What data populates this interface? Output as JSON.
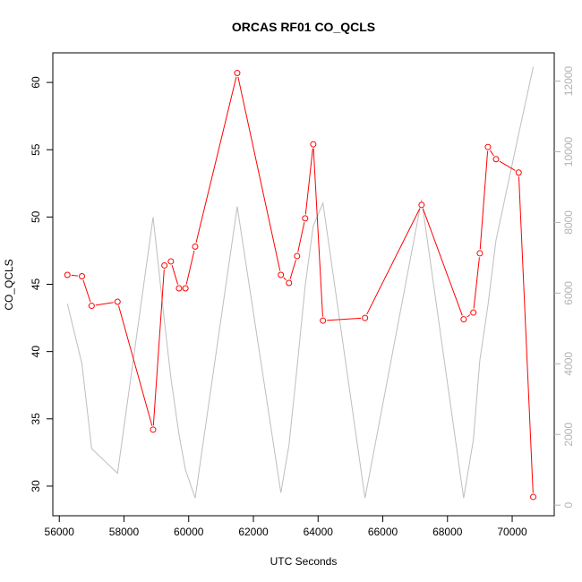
{
  "chart_data": {
    "type": "line",
    "title": "ORCAS RF01 CO_QCLS",
    "xlabel": "UTC Seconds",
    "ylabel": "CO_QCLS",
    "xlim": [
      55800,
      71300
    ],
    "ylim": [
      27.8,
      62.2
    ],
    "y2lim": [
      -300,
      12800
    ],
    "x_ticks": [
      56000,
      58000,
      60000,
      62000,
      64000,
      66000,
      68000,
      70000
    ],
    "y_ticks": [
      30,
      35,
      40,
      45,
      50,
      55,
      60
    ],
    "y2_ticks": [
      0,
      2000,
      4000,
      6000,
      8000,
      10000,
      12000
    ],
    "grid": false,
    "colors": {
      "primary": "#ff0000",
      "secondary": "#bebebe",
      "right_axis": "#b3b3b3"
    },
    "series": [
      {
        "axis": "left",
        "style": "line+points",
        "color": "#ff0000",
        "x": [
          56250,
          56700,
          57000,
          57800,
          58900,
          59250,
          59450,
          59700,
          59900,
          60200,
          61500,
          62850,
          63100,
          63350,
          63600,
          63850,
          64150,
          65450,
          67200,
          68500,
          68800,
          69000,
          69250,
          69500,
          70200,
          70650
        ],
        "y": [
          45.7,
          45.6,
          43.4,
          43.7,
          34.2,
          46.4,
          46.7,
          44.7,
          44.7,
          47.8,
          60.7,
          45.7,
          45.1,
          47.1,
          49.9,
          55.4,
          42.3,
          42.5,
          50.9,
          42.4,
          42.9,
          47.3,
          55.2,
          54.3,
          53.3,
          29.2
        ]
      },
      {
        "axis": "right",
        "style": "line",
        "color": "#bebebe",
        "x": [
          56250,
          56700,
          57000,
          57800,
          58900,
          59250,
          59450,
          59700,
          59900,
          60200,
          61500,
          62850,
          63100,
          63350,
          63600,
          63850,
          64150,
          65450,
          67200,
          68500,
          68800,
          69000,
          69250,
          69500,
          70200,
          70650
        ],
        "y": [
          5700,
          4000,
          1600,
          900,
          8150,
          5200,
          3600,
          2000,
          1000,
          200,
          8450,
          350,
          1700,
          3900,
          6200,
          7900,
          8550,
          200,
          8650,
          200,
          1850,
          4100,
          5650,
          7500,
          10500,
          12400
        ]
      }
    ]
  }
}
